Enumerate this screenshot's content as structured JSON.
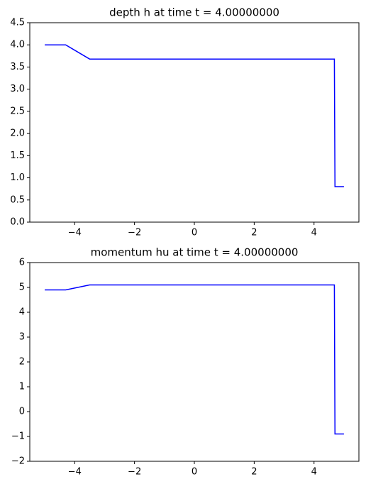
{
  "chart_data": [
    {
      "type": "line",
      "title": "depth h at time t =     4.00000000",
      "x": [
        -5,
        -4.3,
        -3.5,
        4.68,
        4.7,
        5
      ],
      "values": [
        4.0,
        4.0,
        3.68,
        3.68,
        0.8,
        0.8
      ],
      "color": "#0000ff",
      "xlim": [
        -5.5,
        5.5
      ],
      "xticks": [
        {
          "value": -4,
          "label": "−4"
        },
        {
          "value": -2,
          "label": "−2"
        },
        0,
        2,
        4
      ],
      "ylim": [
        0,
        4.5
      ],
      "yticks": [
        {
          "value": 0,
          "label": "0.0"
        },
        {
          "value": 0.5,
          "label": "0.5"
        },
        {
          "value": 1,
          "label": "1.0"
        },
        {
          "value": 1.5,
          "label": "1.5"
        },
        {
          "value": 2,
          "label": "2.0"
        },
        {
          "value": 2.5,
          "label": "2.5"
        },
        {
          "value": 3,
          "label": "3.0"
        },
        {
          "value": 3.5,
          "label": "3.5"
        },
        {
          "value": 4,
          "label": "4.0"
        },
        {
          "value": 4.5,
          "label": "4.5"
        }
      ]
    },
    {
      "type": "line",
      "title": "momentum hu at time t =     4.00000000",
      "x": [
        -5,
        -4.3,
        -3.5,
        4.68,
        4.7,
        5
      ],
      "values": [
        4.9,
        4.9,
        5.1,
        5.1,
        -0.9,
        -0.9
      ],
      "color": "#0000ff",
      "xlim": [
        -5.5,
        5.5
      ],
      "xticks": [
        {
          "value": -4,
          "label": "−4"
        },
        {
          "value": -2,
          "label": "−2"
        },
        0,
        2,
        4
      ],
      "ylim": [
        -2,
        6
      ],
      "yticks": [
        {
          "value": -2,
          "label": "−2"
        },
        {
          "value": -1,
          "label": "−1"
        },
        0,
        1,
        2,
        3,
        4,
        5,
        6
      ]
    }
  ]
}
